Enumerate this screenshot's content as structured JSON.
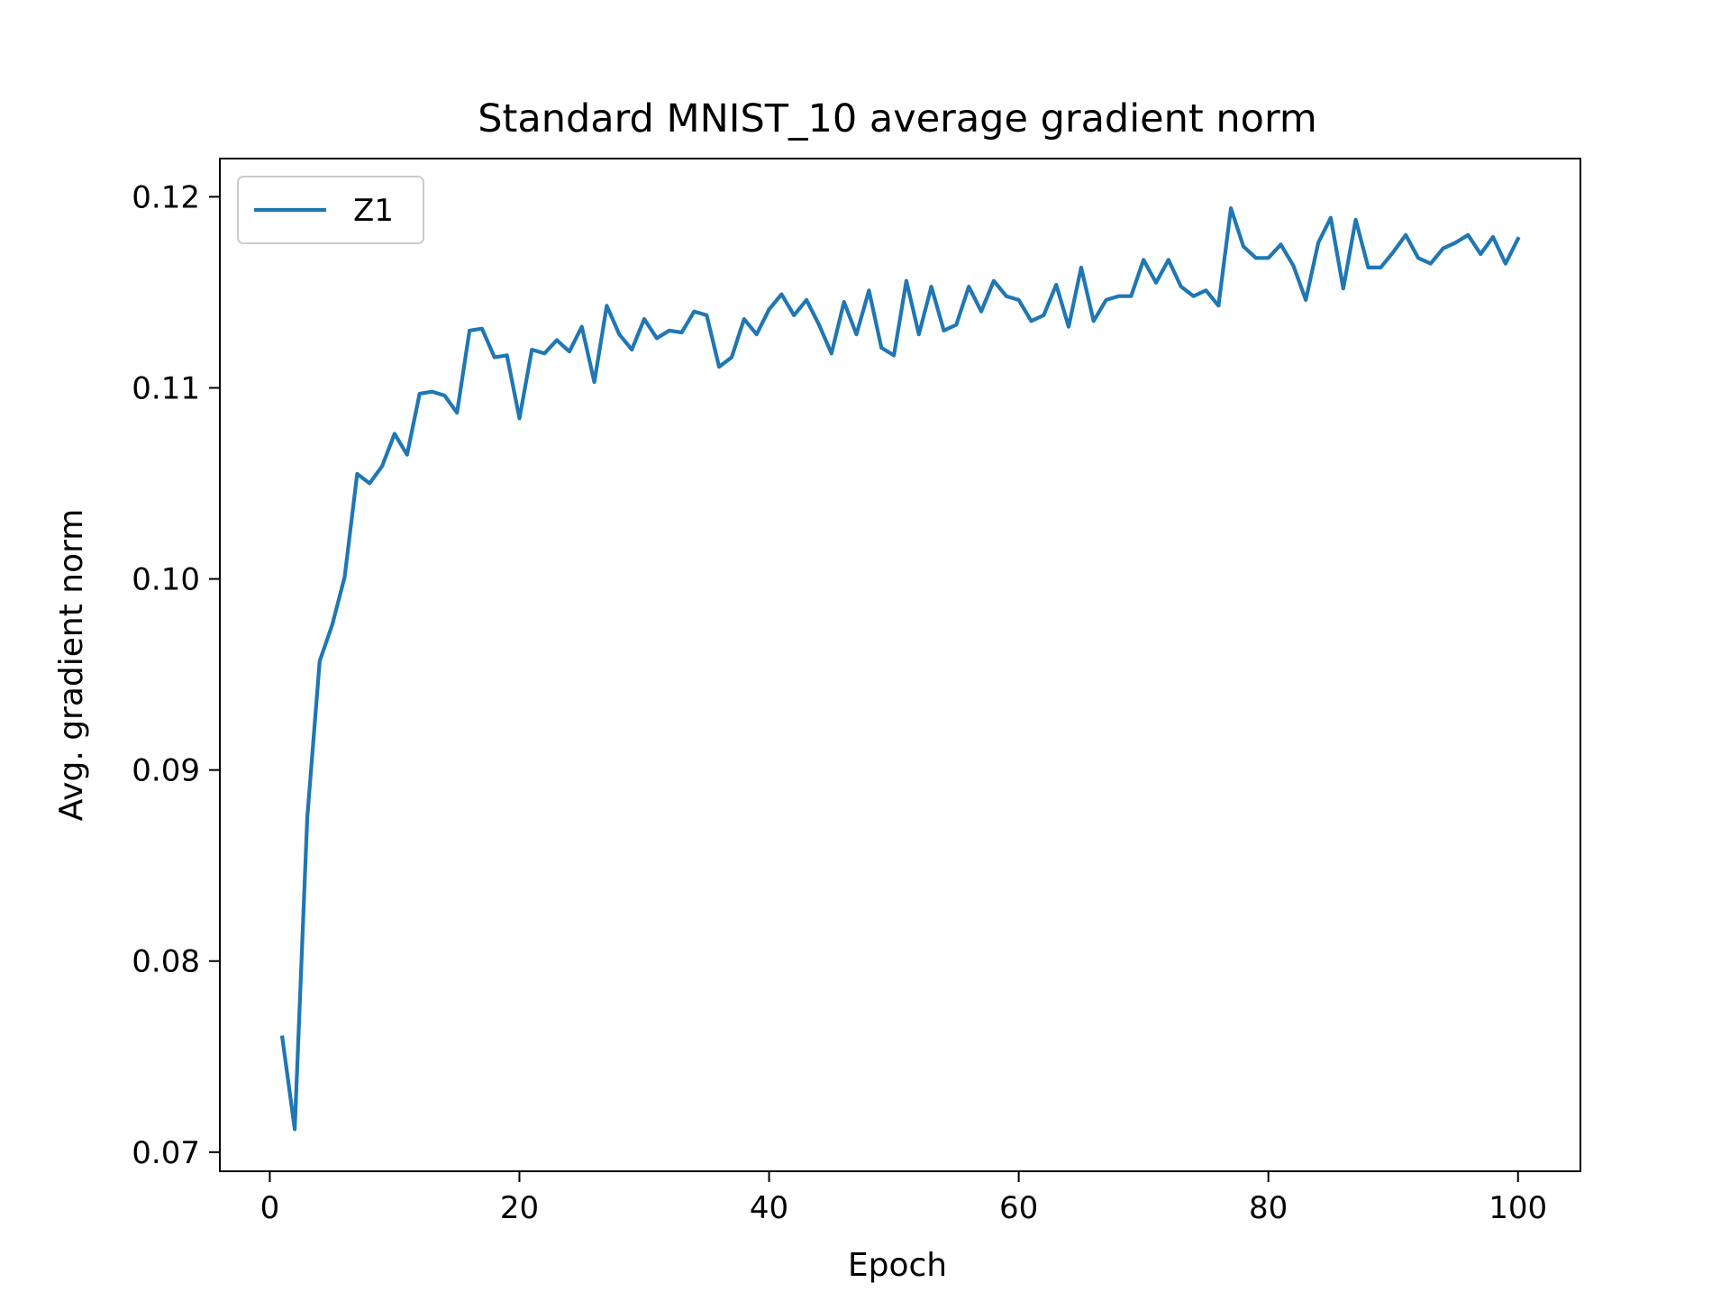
{
  "chart_data": {
    "type": "line",
    "title": "Standard MNIST_10 average gradient norm",
    "xlabel": "Epoch",
    "ylabel": "Avg. gradient norm",
    "xlim": [
      -4,
      105
    ],
    "ylim": [
      0.069,
      0.122
    ],
    "xticks": [
      0,
      20,
      40,
      60,
      80,
      100
    ],
    "xtick_labels": [
      "0",
      "20",
      "40",
      "60",
      "80",
      "100"
    ],
    "yticks": [
      0.07,
      0.08,
      0.09,
      0.1,
      0.11,
      0.12
    ],
    "ytick_labels": [
      "0.07",
      "0.08",
      "0.09",
      "0.10",
      "0.11",
      "0.12"
    ],
    "grid": false,
    "legend_position": "upper-left",
    "series": [
      {
        "name": "Z1",
        "color": "#1f77b4",
        "x": [
          1,
          2,
          3,
          4,
          5,
          6,
          7,
          8,
          9,
          10,
          11,
          12,
          13,
          14,
          15,
          16,
          17,
          18,
          19,
          20,
          21,
          22,
          23,
          24,
          25,
          26,
          27,
          28,
          29,
          30,
          31,
          32,
          33,
          34,
          35,
          36,
          37,
          38,
          39,
          40,
          41,
          42,
          43,
          44,
          45,
          46,
          47,
          48,
          49,
          50,
          51,
          52,
          53,
          54,
          55,
          56,
          57,
          58,
          59,
          60,
          61,
          62,
          63,
          64,
          65,
          66,
          67,
          68,
          69,
          70,
          71,
          72,
          73,
          74,
          75,
          76,
          77,
          78,
          79,
          80,
          81,
          82,
          83,
          84,
          85,
          86,
          87,
          88,
          89,
          90,
          91,
          92,
          93,
          94,
          95,
          96,
          97,
          98,
          99,
          100
        ],
        "values": [
          0.076,
          0.0712,
          0.0875,
          0.0957,
          0.0976,
          0.1001,
          0.1055,
          0.105,
          0.1059,
          0.1076,
          0.1065,
          0.1097,
          0.1098,
          0.1096,
          0.1087,
          0.113,
          0.1131,
          0.1116,
          0.1117,
          0.1084,
          0.112,
          0.1118,
          0.1125,
          0.1119,
          0.1132,
          0.1103,
          0.1143,
          0.1128,
          0.112,
          0.1136,
          0.1126,
          0.113,
          0.1129,
          0.114,
          0.1138,
          0.1111,
          0.1116,
          0.1136,
          0.1128,
          0.1141,
          0.1149,
          0.1138,
          0.1146,
          0.1133,
          0.1118,
          0.1145,
          0.1128,
          0.1151,
          0.1121,
          0.1117,
          0.1156,
          0.1128,
          0.1153,
          0.113,
          0.1133,
          0.1153,
          0.114,
          0.1156,
          0.1148,
          0.1146,
          0.1135,
          0.1138,
          0.1154,
          0.1132,
          0.1163,
          0.1135,
          0.1146,
          0.1148,
          0.1148,
          0.1167,
          0.1155,
          0.1167,
          0.1153,
          0.1148,
          0.1151,
          0.1143,
          0.1194,
          0.1174,
          0.1168,
          0.1168,
          0.1175,
          0.1164,
          0.1146,
          0.1176,
          0.1189,
          0.1152,
          0.1188,
          0.1163,
          0.1163,
          0.1171,
          0.118,
          0.1168,
          0.1165,
          0.1173,
          0.1176,
          0.118,
          0.117,
          0.1179,
          0.1165,
          0.1178
        ]
      }
    ]
  }
}
